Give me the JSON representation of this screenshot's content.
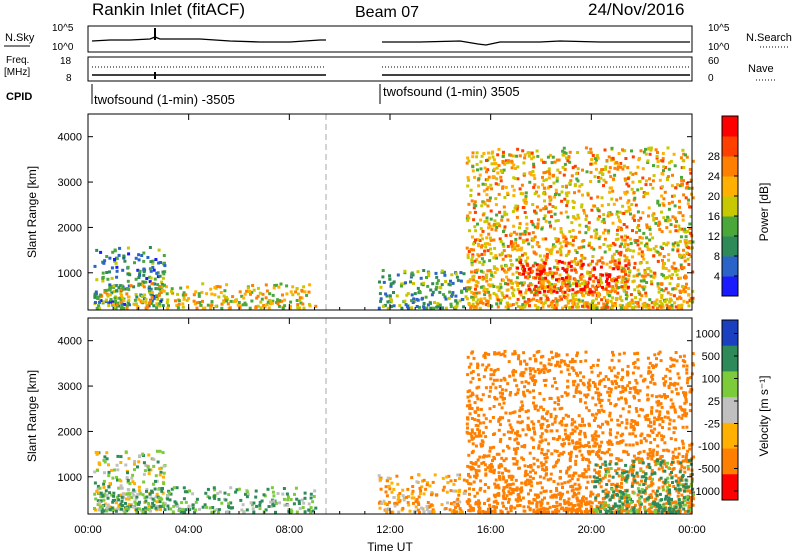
{
  "header": {
    "station": "Rankin Inlet (fitACF)",
    "beam": "Beam 07",
    "date": "24/Nov/2016"
  },
  "noise_panel": {
    "left_label": "N.Sky",
    "right_label": "N.Search",
    "left_ticks": [
      "10^5",
      "10^0"
    ],
    "right_ticks": [
      "10^5",
      "10^0"
    ]
  },
  "freq_panel": {
    "left_label_line1": "Freq.",
    "left_label_line2": "[MHz]",
    "left_ticks": [
      "18",
      "8"
    ],
    "right_label": "Nave",
    "right_ticks": [
      "60",
      "0"
    ]
  },
  "cpid_panel": {
    "label": "CPID",
    "program_1": "twofsound (1-min) -3505",
    "program_2": "twofsound (1-min) 3505"
  },
  "colors": {
    "power_scale": [
      "#1b1bff",
      "#2a64c8",
      "#2f8a5a",
      "#4aa83a",
      "#c8c800",
      "#ffb000",
      "#ff7f00",
      "#ff4000",
      "#ff0000"
    ],
    "velocity_scale": [
      "#1a40c0",
      "#2f8a5a",
      "#7ccb3a",
      "#c0c0c0",
      "#ffb000",
      "#ff7f00",
      "#ff0000"
    ]
  },
  "chart_data": [
    {
      "type": "heatmap",
      "title": "",
      "xlabel": "Time UT",
      "ylabel": "Slant Range [km]",
      "x_tick_labels": [
        "00:00",
        "04:00",
        "08:00",
        "12:00",
        "16:00",
        "20:00",
        "00:00"
      ],
      "y_tick_labels": [
        "1000",
        "2000",
        "3000",
        "4000"
      ],
      "xlim": [
        0,
        24
      ],
      "ylim": [
        180,
        4500
      ],
      "colorbar_label": "Power [dB]",
      "colorbar_ticks": [
        "4",
        "8",
        "12",
        "16",
        "20",
        "24",
        "28"
      ],
      "data_gap_hours": [
        9.5,
        11.5
      ],
      "scatter_regions": [
        {
          "t_start": 0.2,
          "t_end": 3.0,
          "r_low": 300,
          "r_high": 1600,
          "typical_power_db": 8
        },
        {
          "t_start": 0.3,
          "t_end": 9.0,
          "r_low": 250,
          "r_high": 800,
          "typical_power_db": 18
        },
        {
          "t_start": 11.5,
          "t_end": 15.0,
          "r_low": 250,
          "r_high": 1100,
          "typical_power_db": 10
        },
        {
          "t_start": 15.0,
          "t_end": 24.0,
          "r_low": 250,
          "r_high": 3800,
          "typical_power_db": 20
        },
        {
          "t_start": 17.0,
          "t_end": 21.5,
          "r_low": 600,
          "r_high": 1300,
          "typical_power_db": 28
        }
      ]
    },
    {
      "type": "heatmap",
      "title": "",
      "xlabel": "Time UT",
      "ylabel": "Slant Range [km]",
      "x_tick_labels": [
        "00:00",
        "04:00",
        "08:00",
        "12:00",
        "16:00",
        "20:00",
        "00:00"
      ],
      "y_tick_labels": [
        "1000",
        "2000",
        "3000",
        "4000"
      ],
      "xlim": [
        0,
        24
      ],
      "ylim": [
        180,
        4500
      ],
      "colorbar_label": "Velocity [m s⁻¹]",
      "colorbar_ticks": [
        "1000",
        "500",
        "100",
        "25",
        "-25",
        "-100",
        "-500",
        "-1000"
      ],
      "data_gap_hours": [
        9.5,
        11.5
      ],
      "scatter_regions": [
        {
          "t_start": 0.2,
          "t_end": 3.0,
          "r_low": 300,
          "r_high": 1600,
          "typical_velocity": 25
        },
        {
          "t_start": 0.3,
          "t_end": 9.0,
          "r_low": 250,
          "r_high": 800,
          "typical_velocity": 100
        },
        {
          "t_start": 11.5,
          "t_end": 15.0,
          "r_low": 250,
          "r_high": 1100,
          "typical_velocity": -100
        },
        {
          "t_start": 15.0,
          "t_end": 24.0,
          "r_low": 250,
          "r_high": 3800,
          "typical_velocity": -300
        },
        {
          "t_start": 20.0,
          "t_end": 24.0,
          "r_low": 250,
          "r_high": 1400,
          "typical_velocity": 150
        }
      ]
    }
  ]
}
